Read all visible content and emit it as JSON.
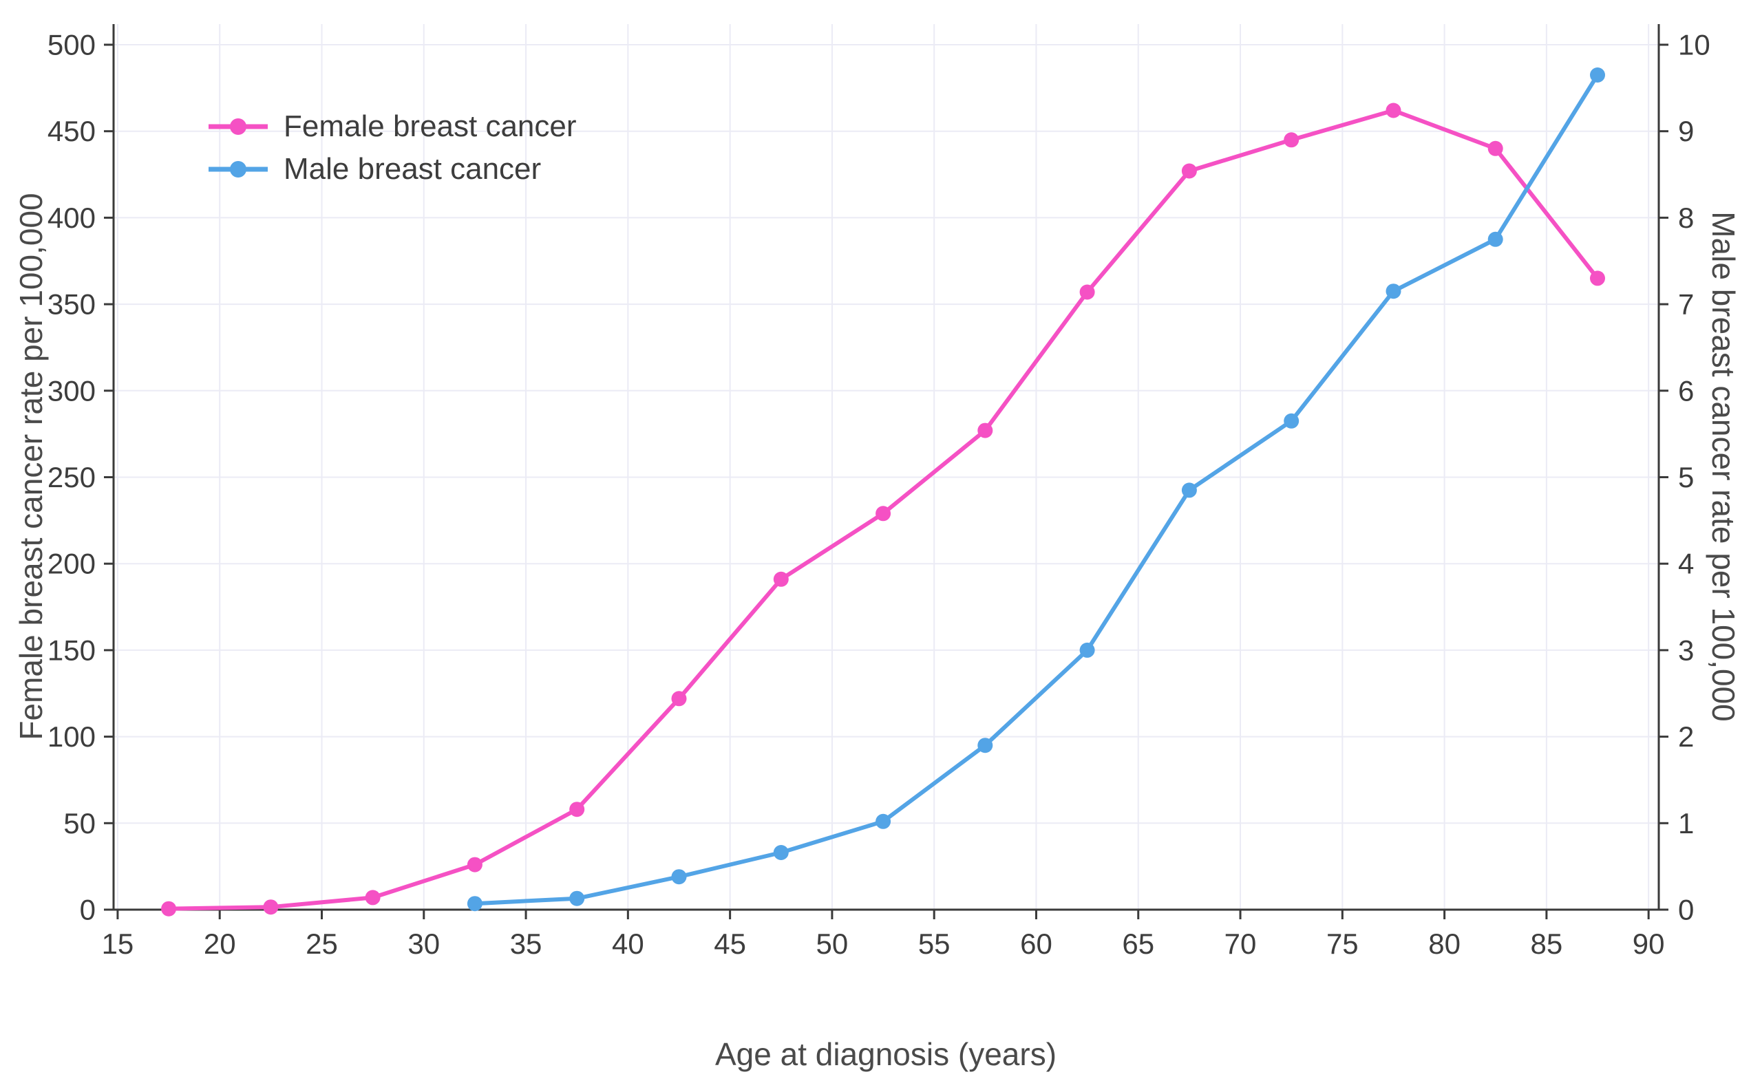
{
  "chart_data": {
    "type": "line",
    "title": "",
    "xlabel": "Age at diagnosis (years)",
    "ylabel_left": "Female breast cancer rate per 100,000",
    "ylabel_right": "Male breast cancer rate per 100,000",
    "x": [
      17.5,
      22.5,
      27.5,
      32.5,
      37.5,
      42.5,
      47.5,
      52.5,
      57.5,
      62.5,
      67.5,
      72.5,
      77.5,
      82.5,
      87.5
    ],
    "series": [
      {
        "name": "Female breast cancer",
        "axis": "left",
        "color": "#f551c4",
        "values": [
          0.5,
          1.5,
          7,
          26,
          58,
          122,
          191,
          229,
          277,
          357,
          427,
          445,
          462,
          440,
          365
        ]
      },
      {
        "name": "Male breast cancer",
        "axis": "right",
        "color": "#53a4e6",
        "values": [
          null,
          null,
          null,
          0.07,
          0.13,
          0.38,
          0.66,
          1.02,
          1.9,
          3.0,
          4.85,
          5.65,
          7.15,
          7.75,
          9.65
        ]
      }
    ],
    "xlim": [
      14.8,
      90.5
    ],
    "x_ticks": [
      15,
      20,
      25,
      30,
      35,
      40,
      45,
      50,
      55,
      60,
      65,
      70,
      75,
      80,
      85,
      90
    ],
    "ylim_left": [
      0,
      500
    ],
    "y_ticks_left": [
      0,
      50,
      100,
      150,
      200,
      250,
      300,
      350,
      400,
      450,
      500
    ],
    "ylim_right": [
      0,
      10
    ],
    "y_ticks_right": [
      0,
      1,
      2,
      3,
      4,
      5,
      6,
      7,
      8,
      9,
      10
    ],
    "grid": true,
    "legend_position": "inside-upper-left",
    "colors": {
      "grid": "#ebebf5",
      "axis": "#3a3a3a",
      "tick_text": "#3d3d3d"
    }
  }
}
